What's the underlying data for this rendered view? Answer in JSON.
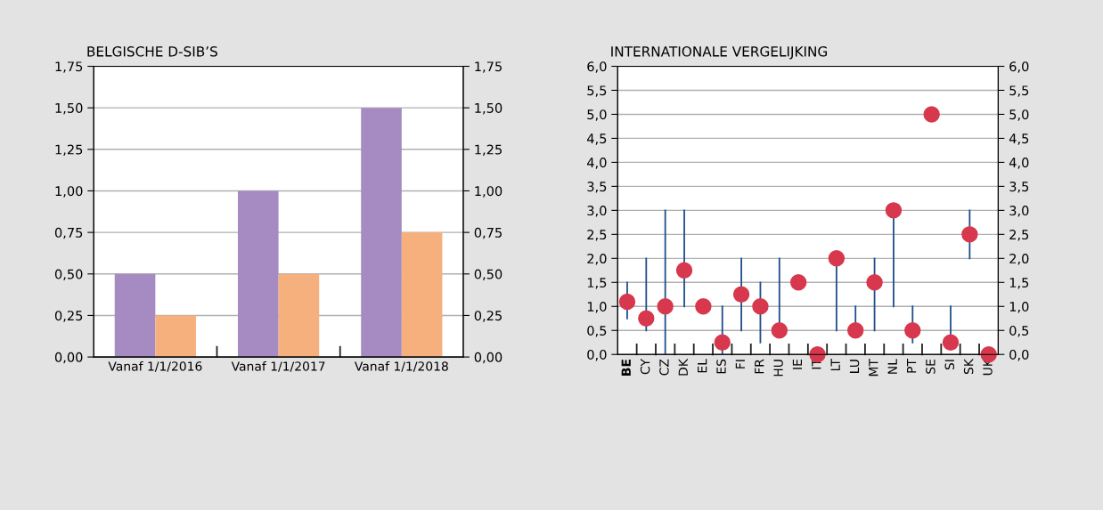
{
  "chart_data": [
    {
      "type": "bar",
      "title": "BELGISCHE D-SIB’S",
      "categories": [
        "Vanaf 1/1/2016",
        "Vanaf 1/1/2017",
        "Vanaf 1/1/2018"
      ],
      "series": [
        {
          "color": "#a68bc2",
          "values": [
            0.5,
            1.0,
            1.5
          ]
        },
        {
          "color": "#f6b07e",
          "values": [
            0.25,
            0.5,
            0.75
          ]
        }
      ],
      "ylim": [
        0,
        1.75
      ],
      "yticks": [
        {
          "value": 0,
          "label": "0,00"
        },
        {
          "value": 0.25,
          "label": "0,25"
        },
        {
          "value": 0.5,
          "label": "0,50"
        },
        {
          "value": 0.75,
          "label": "0,75"
        },
        {
          "value": 1.0,
          "label": "1,00"
        },
        {
          "value": 1.25,
          "label": "1,25"
        },
        {
          "value": 1.5,
          "label": "1,50"
        },
        {
          "value": 1.75,
          "label": "1,75"
        }
      ],
      "y2lim": [
        0,
        1.75
      ],
      "y2ticks": [
        {
          "value": 0,
          "label": "0,00"
        },
        {
          "value": 0.25,
          "label": "0,25"
        },
        {
          "value": 0.5,
          "label": "0,50"
        },
        {
          "value": 0.75,
          "label": "0,75"
        },
        {
          "value": 1.0,
          "label": "1,00"
        },
        {
          "value": 1.25,
          "label": "1,25"
        },
        {
          "value": 1.5,
          "label": "1,50"
        },
        {
          "value": 1.75,
          "label": "1,75"
        }
      ],
      "grid": "y",
      "legend": false
    },
    {
      "type": "scatter",
      "title": "INTERNATIONALE VERGELIJKING",
      "categories": [
        "BE",
        "CY",
        "CZ",
        "DK",
        "EL",
        "ES",
        "FI",
        "FR",
        "HU",
        "IE",
        "IT",
        "LT",
        "LU",
        "MT",
        "NL",
        "PT",
        "SE",
        "SI",
        "SK",
        "UK"
      ],
      "series": [
        {
          "color": "#d7384e",
          "values": [
            1.1,
            0.75,
            1.0,
            1.75,
            1.0,
            0.25,
            1.25,
            1.0,
            0.5,
            1.5,
            0,
            2.0,
            0.5,
            1.5,
            3.0,
            0.5,
            5.0,
            0.25,
            2.5,
            0
          ],
          "errors": [
            [
              0.75,
              1.5
            ],
            [
              0.5,
              2.0
            ],
            [
              0,
              3.0
            ],
            [
              1.0,
              3.0
            ],
            null,
            [
              0,
              1.0
            ],
            [
              0.5,
              2.0
            ],
            [
              0.25,
              1.5
            ],
            [
              0.5,
              2.0
            ],
            null,
            null,
            [
              0.5,
              2.0
            ],
            [
              0.5,
              1.0
            ],
            [
              0.5,
              2.0
            ],
            [
              1.0,
              3.0
            ],
            [
              0.25,
              1.0
            ],
            null,
            [
              0.25,
              1.0
            ],
            [
              2.0,
              3.0
            ],
            null
          ]
        }
      ],
      "marker": "circle",
      "ylim": [
        0,
        6
      ],
      "yticks": [
        {
          "value": 0,
          "label": "0,0"
        },
        {
          "value": 0.5,
          "label": "0,5"
        },
        {
          "value": 1,
          "label": "1,0"
        },
        {
          "value": 1.5,
          "label": "1,5"
        },
        {
          "value": 2,
          "label": "2,0"
        },
        {
          "value": 2.5,
          "label": "2,5"
        },
        {
          "value": 3,
          "label": "3,0"
        },
        {
          "value": 3.5,
          "label": "3,5"
        },
        {
          "value": 4,
          "label": "4,0"
        },
        {
          "value": 4.5,
          "label": "4,5"
        },
        {
          "value": 5,
          "label": "5,0"
        },
        {
          "value": 5.5,
          "label": "5,5"
        },
        {
          "value": 6,
          "label": "6,0"
        }
      ],
      "y2lim": [
        0,
        6
      ],
      "y2ticks": [
        {
          "value": 0,
          "label": "0,0"
        },
        {
          "value": 0.5,
          "label": "0,5"
        },
        {
          "value": 1,
          "label": "1,0"
        },
        {
          "value": 1.5,
          "label": "1,5"
        },
        {
          "value": 2,
          "label": "2,0"
        },
        {
          "value": 2.5,
          "label": "2,5"
        },
        {
          "value": 3,
          "label": "3,0"
        },
        {
          "value": 3.5,
          "label": "3,5"
        },
        {
          "value": 4,
          "label": "4,0"
        },
        {
          "value": 4.5,
          "label": "4,5"
        },
        {
          "value": 5,
          "label": "5,0"
        },
        {
          "value": 5.5,
          "label": "5,5"
        },
        {
          "value": 6,
          "label": "6,0"
        }
      ],
      "grid": "y",
      "legend": false
    }
  ]
}
